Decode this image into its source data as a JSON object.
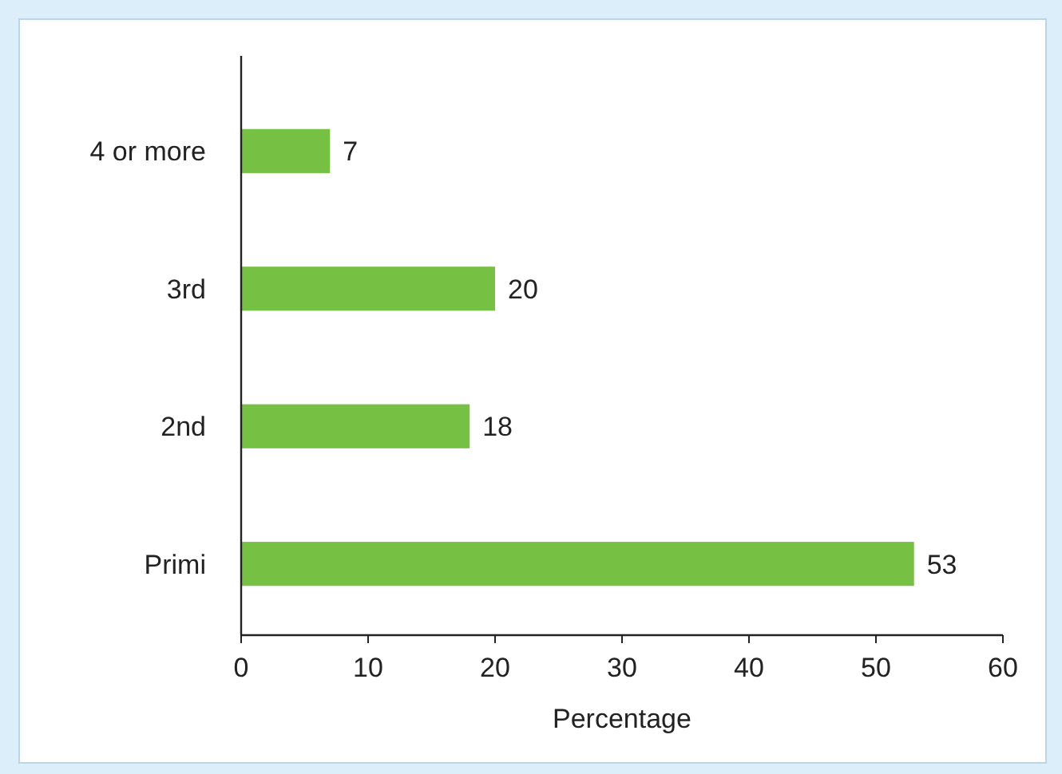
{
  "chart_data": {
    "type": "bar",
    "orientation": "horizontal",
    "xlabel": "Percentage",
    "categories": [
      "4 or more",
      "3rd",
      "2nd",
      "Primi"
    ],
    "values": [
      7,
      20,
      18,
      53
    ],
    "color": "#76c043",
    "xlim": [
      0,
      60
    ],
    "xticks": [
      0,
      10,
      20,
      30,
      40,
      50,
      60
    ],
    "grid": false,
    "data_labels": true
  }
}
